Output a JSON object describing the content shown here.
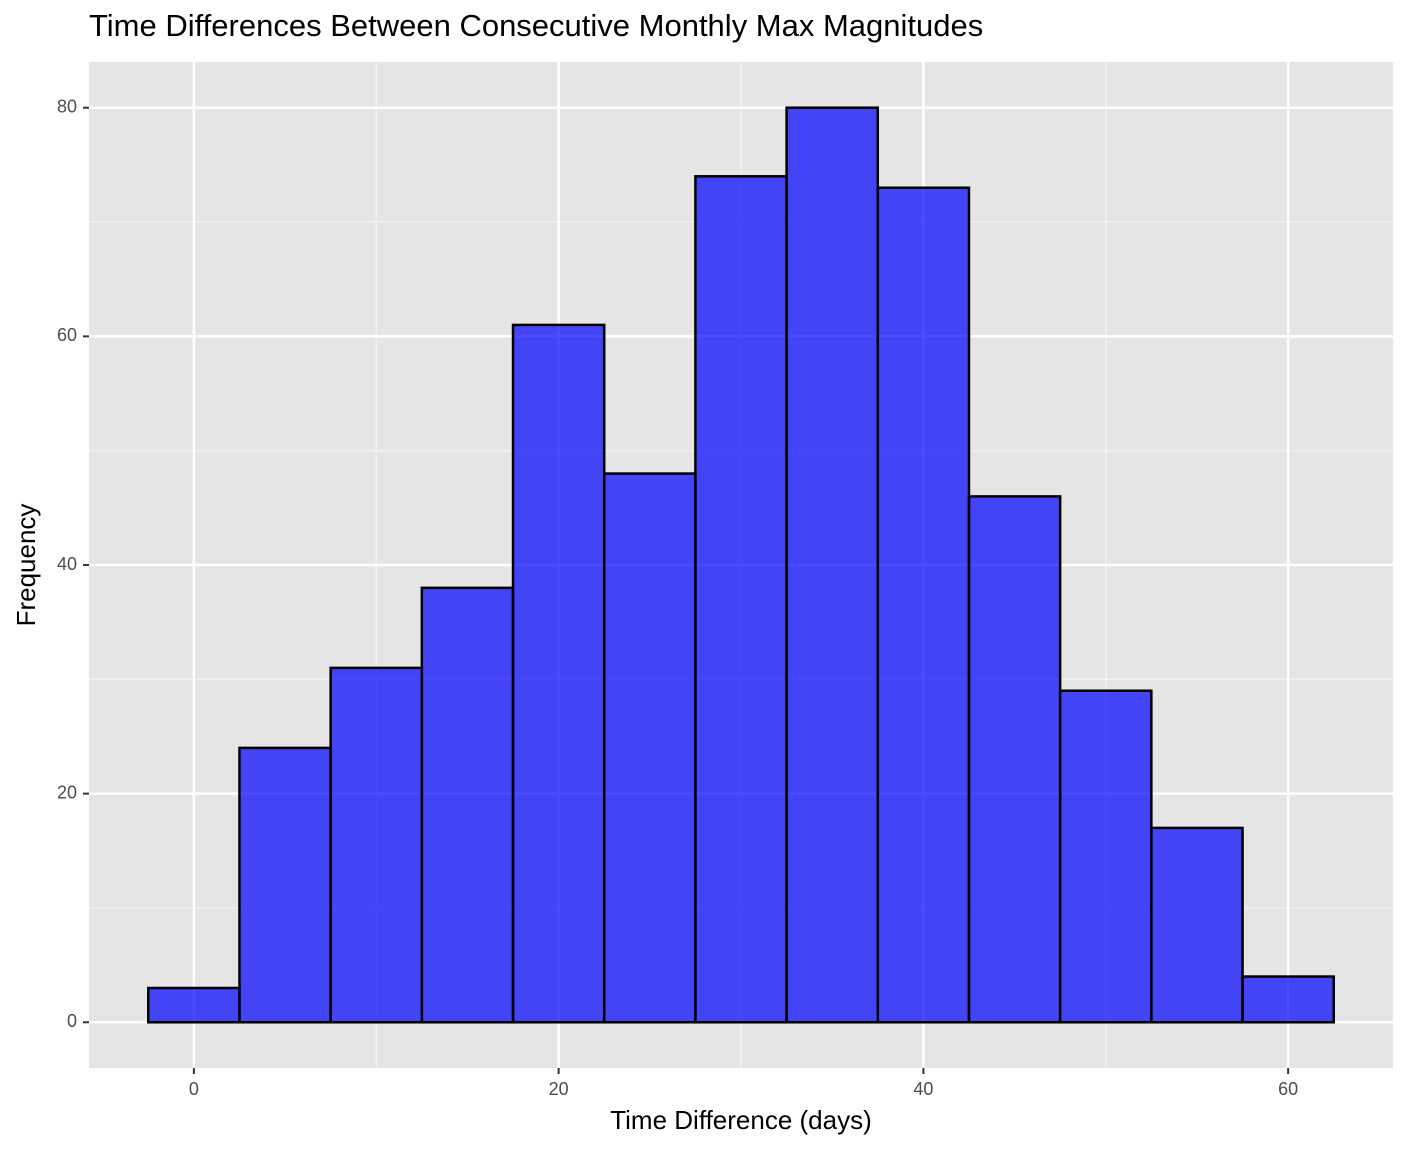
{
  "chart_data": {
    "type": "histogram",
    "title": "Time Differences Between Consecutive Monthly Max Magnitudes",
    "x_label": "Time Difference (days)",
    "y_label": "Frequency",
    "bins": [
      -2.5,
      2.5,
      7.5,
      12.5,
      17.5,
      22.5,
      27.5,
      32.5,
      37.5,
      42.5,
      47.5,
      52.5,
      57.5,
      62.5
    ],
    "values": [
      3,
      24,
      31,
      38,
      61,
      48,
      74,
      80,
      73,
      46,
      29,
      17,
      4
    ],
    "color": "blue",
    "edge_color": "black",
    "xlim": [
      -5.75,
      65.75
    ],
    "xticks": [
      0,
      20,
      40,
      60
    ],
    "ylim": [
      -4,
      84
    ],
    "yticks": [
      0,
      20,
      40,
      60,
      80
    ],
    "grid": true
  }
}
